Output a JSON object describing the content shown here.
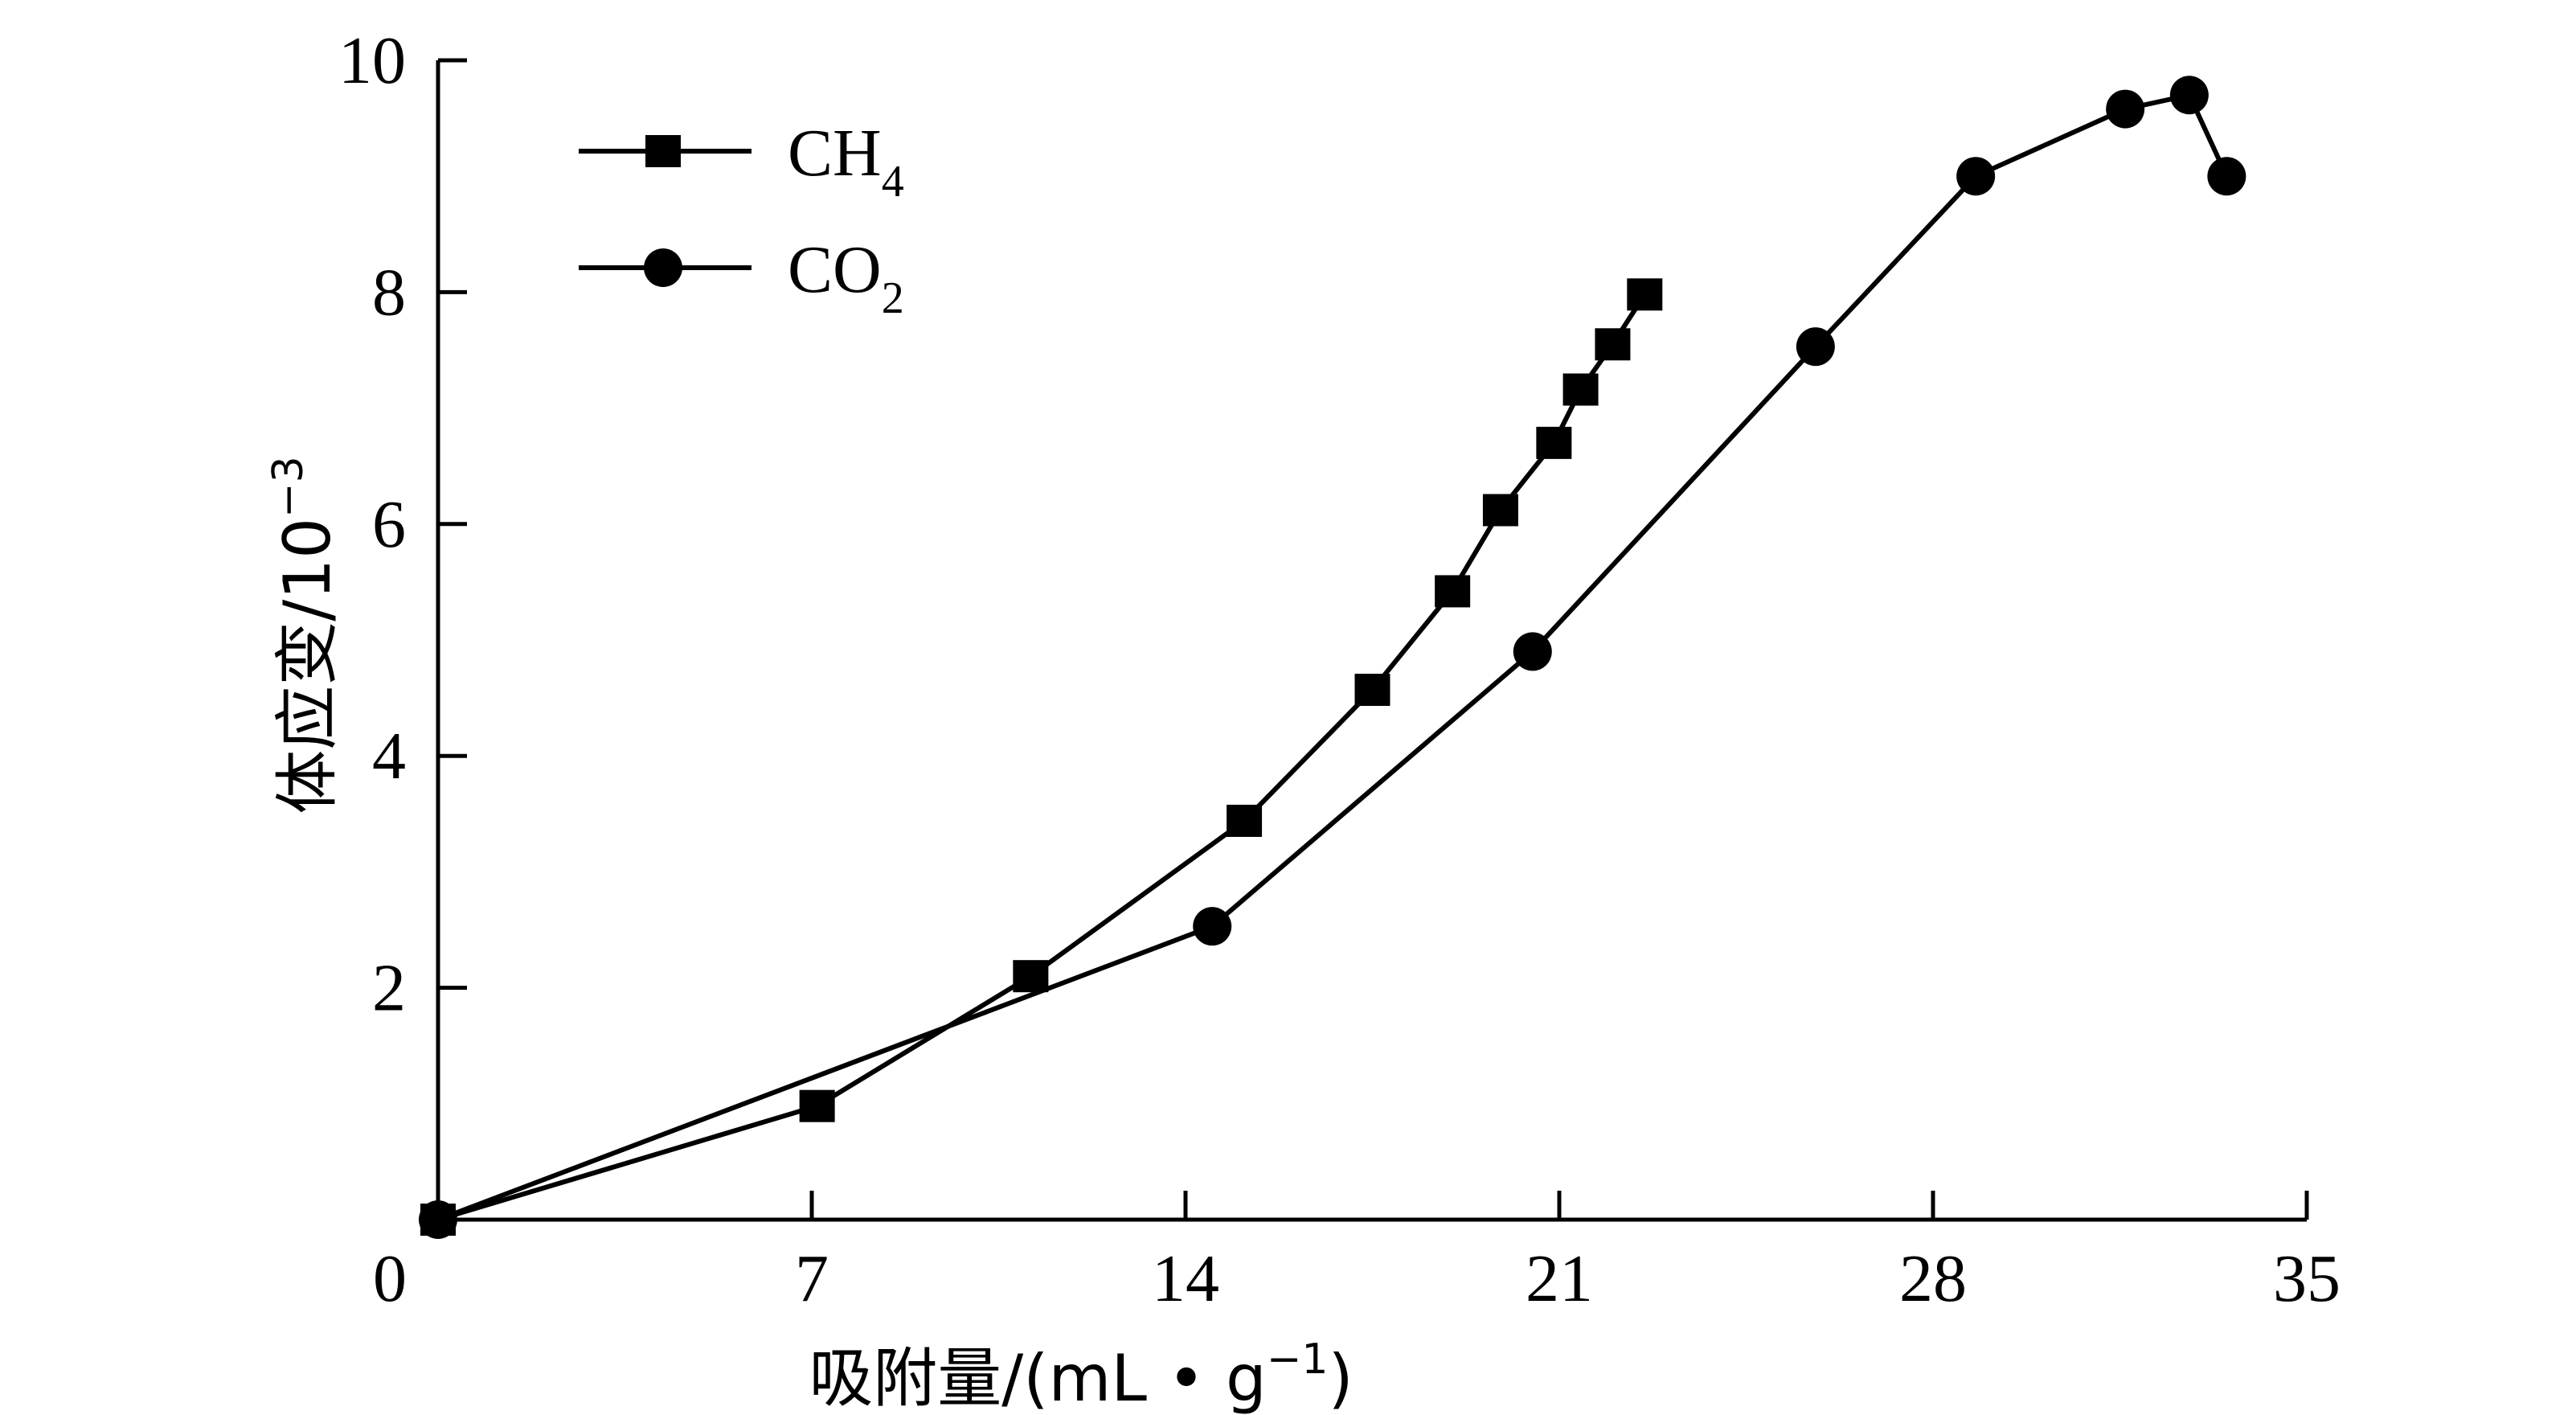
{
  "chart_data": {
    "type": "line",
    "xlabel": {
      "main": "吸附量/(mL • g",
      "sup": "−1",
      "tail": ")"
    },
    "ylabel": {
      "main": "体应变/10",
      "sup": "−3"
    },
    "xlim": [
      0,
      35
    ],
    "ylim": [
      0,
      10
    ],
    "xticks": [
      7,
      14,
      21,
      28,
      35
    ],
    "yticks": [
      2,
      4,
      6,
      8,
      10
    ],
    "origin_label": "0",
    "grid": false,
    "legend_position": "top-left",
    "series": [
      {
        "name": "CH4",
        "label_main": "CH",
        "label_sub": "4",
        "marker": "square",
        "x": [
          0,
          7.1,
          11.1,
          15.1,
          17.5,
          19.0,
          19.9,
          20.9,
          21.4,
          22.0,
          22.6
        ],
        "y": [
          0,
          0.98,
          2.1,
          3.44,
          4.57,
          5.42,
          6.12,
          6.7,
          7.16,
          7.55,
          7.98
        ]
      },
      {
        "name": "CO2",
        "label_main": "CO",
        "label_sub": "2",
        "marker": "circle",
        "x": [
          0,
          14.5,
          20.5,
          25.8,
          28.8,
          31.6,
          32.8,
          33.5
        ],
        "y": [
          0,
          2.53,
          4.9,
          7.53,
          9.0,
          9.58,
          9.7,
          9.0
        ]
      }
    ]
  }
}
